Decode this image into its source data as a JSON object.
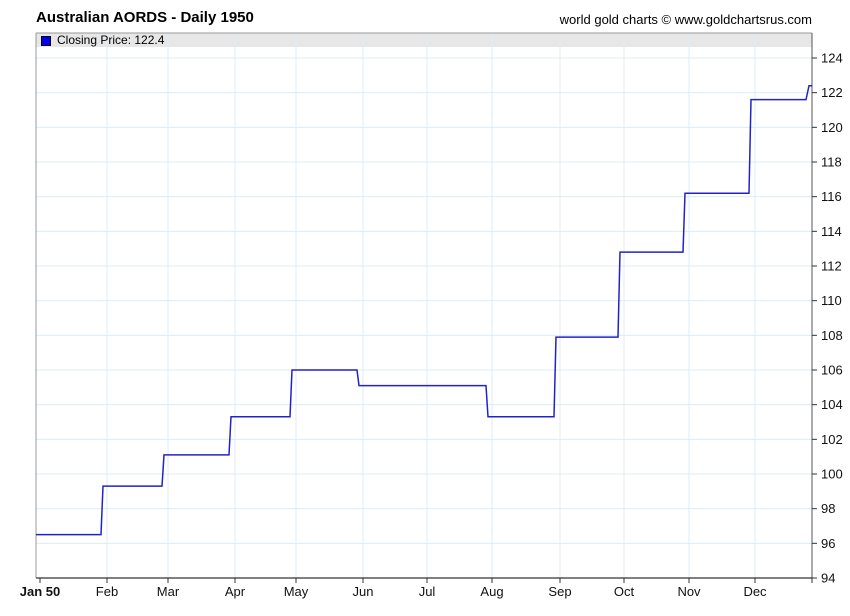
{
  "header": {
    "title": "Australian AORDS - Daily 1950",
    "credit": "world gold charts © www.goldchartsrus.com"
  },
  "legend": {
    "text": "Closing Price: 122.4",
    "label": "Closing Price",
    "current_value": "122.4",
    "swatch_color": "#0000ee"
  },
  "chart_data": {
    "type": "line",
    "subtype": "step",
    "title": "Australian AORDS - Daily 1950",
    "series": [
      {
        "name": "Closing Price",
        "color": "#2222cc",
        "categories": [
          "Jan",
          "Feb",
          "Mar",
          "Apr",
          "May",
          "Jun",
          "Jul",
          "Aug",
          "Sep",
          "Oct",
          "Nov",
          "Dec"
        ],
        "values": [
          96.5,
          99.3,
          101.1,
          103.3,
          106.0,
          105.1,
          105.1,
          103.3,
          107.9,
          112.8,
          116.2,
          121.6
        ],
        "final_value": 122.4
      }
    ],
    "xlabel": "",
    "ylabel": "",
    "x_tick_labels": [
      "Jan 50",
      "Feb",
      "Mar",
      "Apr",
      "May",
      "Jun",
      "Jul",
      "Aug",
      "Sep",
      "Oct",
      "Nov",
      "Dec"
    ],
    "y_ticks": [
      94,
      96,
      98,
      100,
      102,
      104,
      106,
      108,
      110,
      112,
      114,
      116,
      118,
      120,
      122,
      124
    ],
    "ylim": [
      94,
      124
    ],
    "xlim_label": "Jan 1950 - Dec 1950",
    "grid": "on",
    "y_axis_side": "right",
    "legend_position": "top-strip"
  },
  "colors": {
    "line": "#2222cc",
    "legend_swatch": "#0000ee",
    "gridline": "#dcebf7",
    "legend_strip_bg": "#e7e7e7",
    "plot_border_light": "#999999",
    "plot_border_right": "#555555",
    "axis_bottom": "#000000",
    "tick": "#333333",
    "label_text": "#111111"
  }
}
